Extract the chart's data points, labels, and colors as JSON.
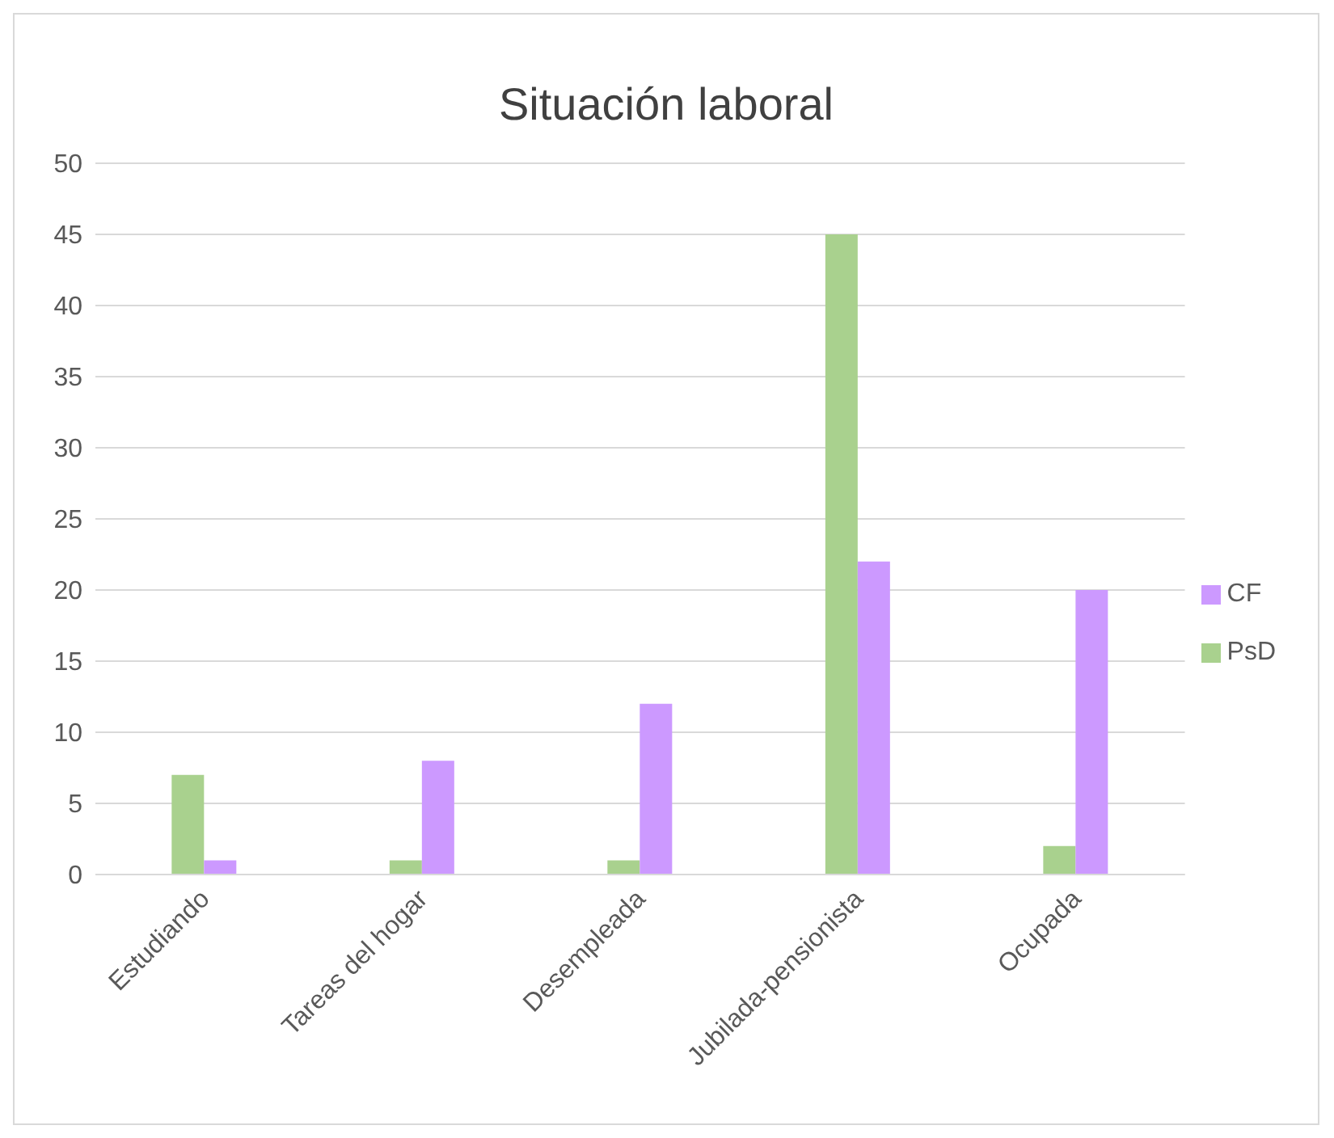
{
  "chart_data": {
    "type": "bar",
    "title": "Situación laboral",
    "categories": [
      "Estudiando",
      "Tareas del hogar",
      "Desempleada",
      "Jubilada-pensionista",
      "Ocupada"
    ],
    "series": [
      {
        "name": "PsD",
        "color": "#a9d18e",
        "values": [
          7,
          1,
          1,
          45,
          2
        ]
      },
      {
        "name": "CF",
        "color": "#cc99ff",
        "values": [
          1,
          8,
          12,
          22,
          20
        ]
      }
    ],
    "ylim": [
      0,
      50
    ],
    "yticks": [
      0,
      5,
      10,
      15,
      20,
      25,
      30,
      35,
      40,
      45,
      50
    ],
    "grid": "y",
    "legend": "right"
  }
}
